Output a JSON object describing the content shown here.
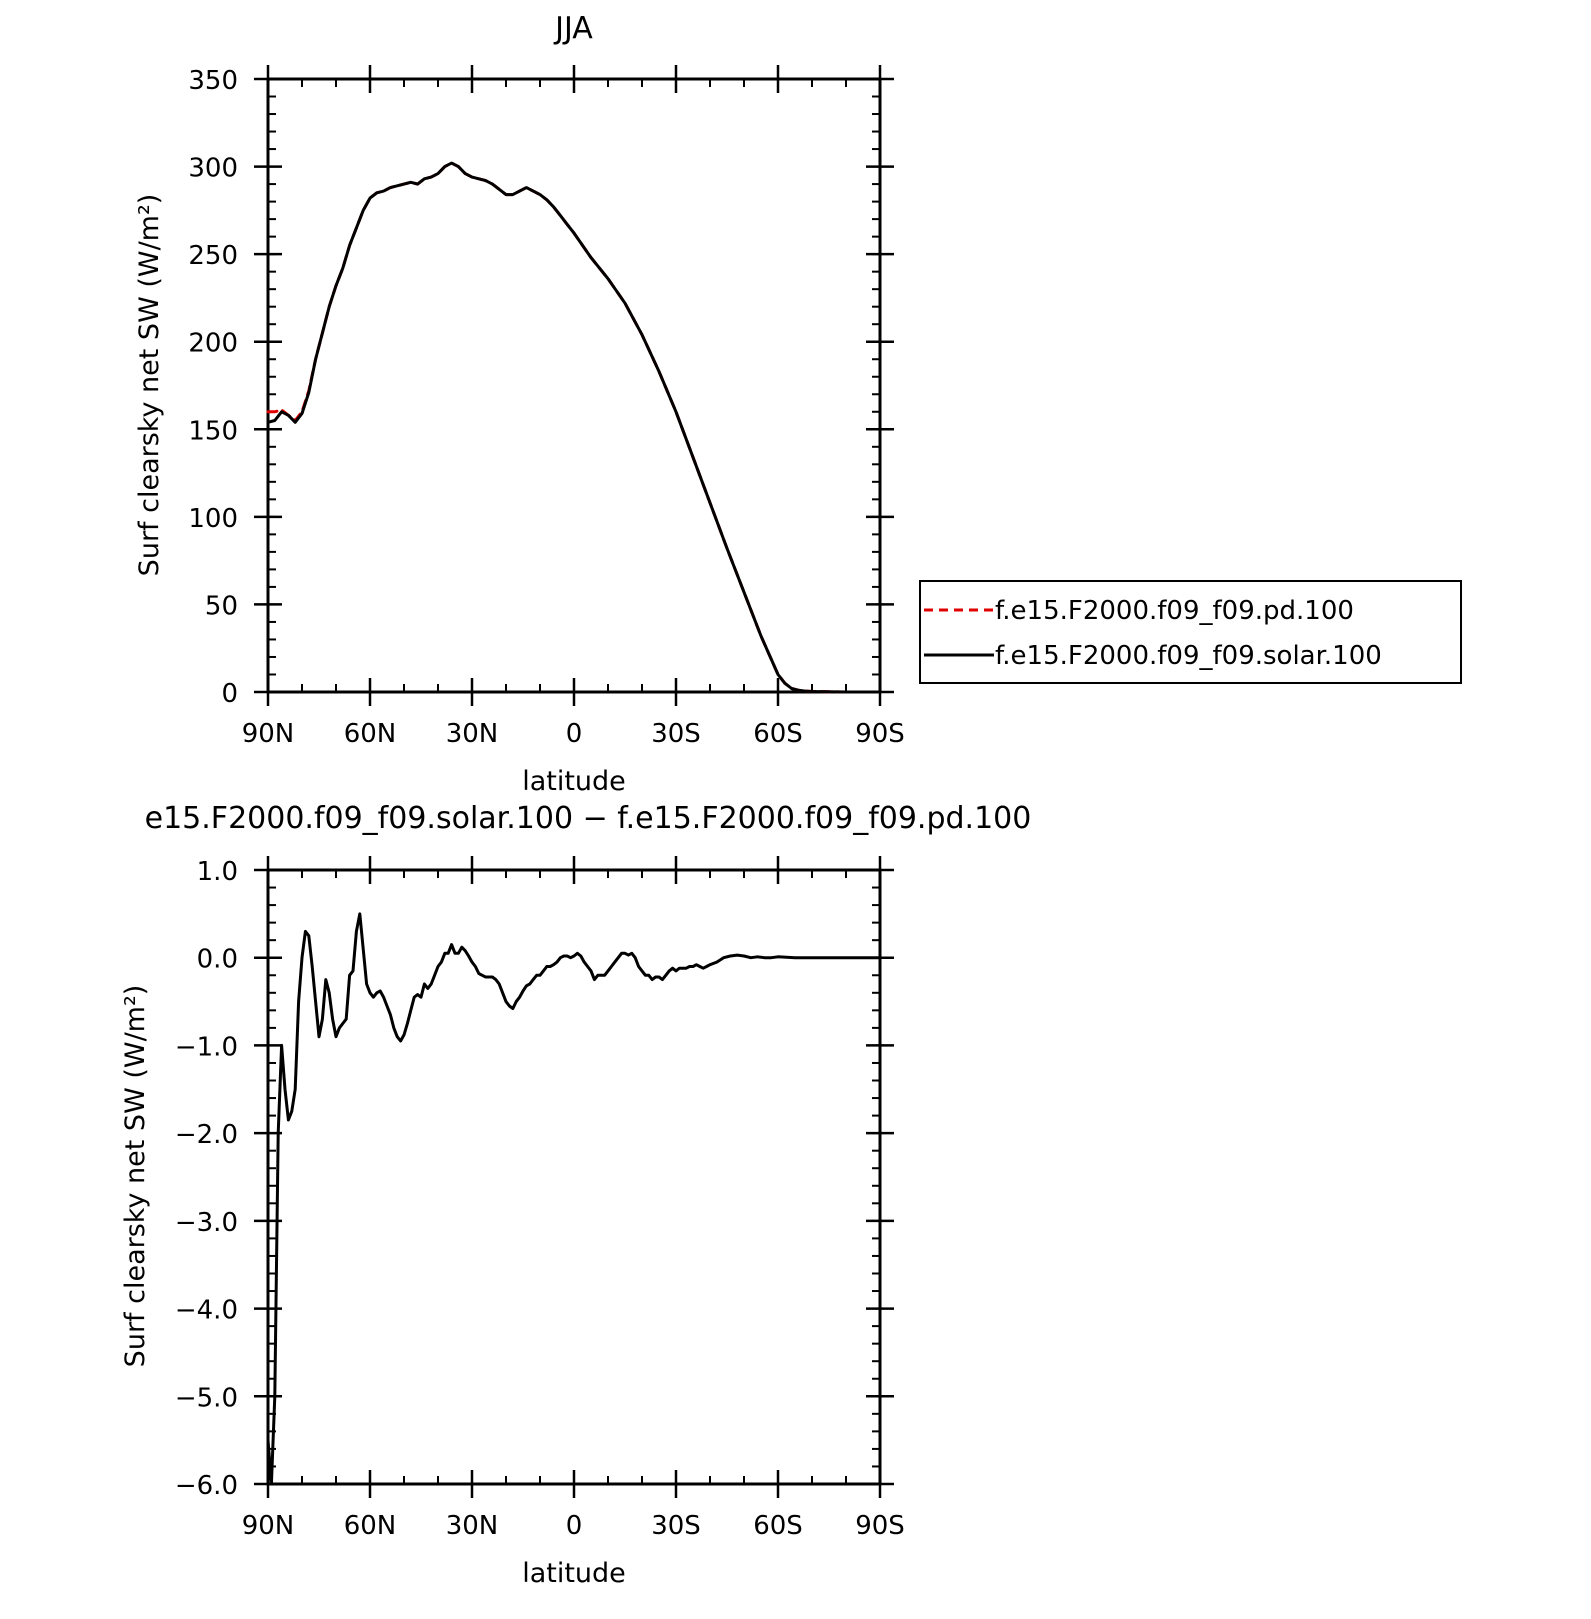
{
  "chart_data": [
    {
      "type": "line",
      "title": "JJA",
      "xlabel": "latitude",
      "ylabel": "Surf clearsky net SW (W/m²)",
      "xlim": [
        90,
        -90
      ],
      "ylim": [
        0,
        350
      ],
      "x_ticks": [
        90,
        60,
        30,
        0,
        -30,
        -60,
        -90
      ],
      "x_tick_labels": [
        "90N",
        "60N",
        "30N",
        "0",
        "30S",
        "60S",
        "90S"
      ],
      "y_ticks": [
        0,
        50,
        100,
        150,
        200,
        250,
        300,
        350
      ],
      "y_tick_labels": [
        "0",
        "50",
        "100",
        "150",
        "200",
        "250",
        "300",
        "350"
      ],
      "legend_position": "right",
      "series": [
        {
          "name": "f.e15.F2000.f09_f09.pd.100",
          "color": "#e00000",
          "dash": "dashed",
          "x": [
            90,
            88,
            86,
            84,
            82,
            80,
            78,
            76,
            74,
            72,
            70,
            68,
            66,
            64,
            62,
            60,
            58,
            56,
            54,
            52,
            50,
            48,
            46,
            44,
            42,
            40,
            38,
            36,
            34,
            32,
            30,
            28,
            26,
            24,
            22,
            20,
            18,
            16,
            14,
            12,
            10,
            8,
            6,
            4,
            2,
            0,
            -5,
            -10,
            -15,
            -20,
            -25,
            -30,
            -35,
            -40,
            -45,
            -50,
            -55,
            -60,
            -62,
            -64,
            -66,
            -68,
            -70,
            -75,
            -80,
            -85,
            -90
          ],
          "y": [
            160,
            160,
            161,
            158,
            155,
            160,
            172,
            190,
            205,
            220,
            232,
            242,
            255,
            265,
            275,
            282,
            285,
            286,
            288,
            289,
            290,
            291,
            290,
            293,
            294,
            296,
            300,
            302,
            300,
            296,
            294,
            293,
            292,
            290,
            287,
            284,
            284,
            286,
            288,
            286,
            284,
            281,
            277,
            272,
            267,
            262,
            248,
            236,
            222,
            204,
            183,
            160,
            134,
            108,
            82,
            57,
            32,
            10,
            5,
            2,
            1,
            0.5,
            0.3,
            0.1,
            0,
            0,
            0
          ]
        },
        {
          "name": "f.e15.F2000.f09_f09.solar.100",
          "color": "#000000",
          "dash": "solid",
          "x": [
            90,
            88,
            86,
            84,
            82,
            80,
            78,
            76,
            74,
            72,
            70,
            68,
            66,
            64,
            62,
            60,
            58,
            56,
            54,
            52,
            50,
            48,
            46,
            44,
            42,
            40,
            38,
            36,
            34,
            32,
            30,
            28,
            26,
            24,
            22,
            20,
            18,
            16,
            14,
            12,
            10,
            8,
            6,
            4,
            2,
            0,
            -5,
            -10,
            -15,
            -20,
            -25,
            -30,
            -35,
            -40,
            -45,
            -50,
            -55,
            -60,
            -62,
            -64,
            -66,
            -68,
            -70,
            -75,
            -80,
            -85,
            -90
          ],
          "y": [
            154,
            155,
            160,
            158,
            154,
            159,
            171,
            190,
            205,
            220,
            232,
            242,
            255,
            265,
            275,
            282,
            285,
            286,
            288,
            289,
            290,
            291,
            290,
            293,
            294,
            296,
            300,
            302,
            300,
            296,
            294,
            293,
            292,
            290,
            287,
            284,
            284,
            286,
            288,
            286,
            284,
            281,
            277,
            272,
            267,
            262,
            248,
            236,
            222,
            204,
            183,
            160,
            134,
            108,
            82,
            57,
            32,
            10,
            5,
            2,
            1,
            0.5,
            0.3,
            0.1,
            0,
            0,
            0
          ]
        }
      ]
    },
    {
      "type": "line",
      "title": "e15.F2000.f09_f09.solar.100 − f.e15.F2000.f09_f09.pd.100",
      "xlabel": "latitude",
      "ylabel": "Surf clearsky net SW (W/m²)",
      "xlim": [
        90,
        -90
      ],
      "ylim": [
        -6,
        1
      ],
      "x_ticks": [
        90,
        60,
        30,
        0,
        -30,
        -60,
        -90
      ],
      "x_tick_labels": [
        "90N",
        "60N",
        "30N",
        "0",
        "30S",
        "60S",
        "90S"
      ],
      "y_ticks": [
        1,
        0,
        -1,
        -2,
        -3,
        -4,
        -5,
        -6
      ],
      "y_tick_labels": [
        "1.0",
        "0.0",
        "−1.0",
        "−2.0",
        "−3.0",
        "−4.0",
        "−5.0",
        "−6.0"
      ],
      "series": [
        {
          "color": "#000000",
          "dash": "solid",
          "x": [
            90,
            89,
            88,
            87,
            86,
            85,
            84,
            83,
            82,
            81,
            80,
            79,
            78,
            77,
            76,
            75,
            74,
            73,
            72,
            71,
            70,
            69,
            68,
            67,
            66,
            65,
            64,
            63,
            62,
            61,
            60,
            59,
            58,
            57,
            56,
            55,
            54,
            53,
            52,
            51,
            50,
            49,
            48,
            47,
            46,
            45,
            44,
            43,
            42,
            41,
            40,
            39,
            38,
            37,
            36,
            35,
            34,
            33,
            32,
            31,
            30,
            29,
            28,
            27,
            26,
            25,
            24,
            23,
            22,
            21,
            20,
            19,
            18,
            17,
            16,
            15,
            14,
            13,
            12,
            11,
            10,
            9,
            8,
            7,
            6,
            5,
            4,
            3,
            2,
            1,
            0,
            -1,
            -2,
            -3,
            -4,
            -5,
            -6,
            -7,
            -8,
            -9,
            -10,
            -11,
            -12,
            -13,
            -14,
            -15,
            -16,
            -17,
            -18,
            -19,
            -20,
            -21,
            -22,
            -23,
            -24,
            -25,
            -26,
            -27,
            -28,
            -29,
            -30,
            -31,
            -32,
            -33,
            -34,
            -35,
            -36,
            -37,
            -38,
            -39,
            -40,
            -42,
            -44,
            -46,
            -48,
            -50,
            -52,
            -54,
            -56,
            -58,
            -60,
            -65,
            -70,
            -75,
            -80,
            -85,
            -90
          ],
          "y": [
            -5.5,
            -6.0,
            -5.0,
            -2.0,
            -1.0,
            -1.5,
            -1.85,
            -1.75,
            -1.5,
            -0.5,
            0.0,
            0.3,
            0.25,
            -0.1,
            -0.5,
            -0.9,
            -0.7,
            -0.25,
            -0.4,
            -0.7,
            -0.9,
            -0.8,
            -0.75,
            -0.7,
            -0.2,
            -0.15,
            0.3,
            0.5,
            0.1,
            -0.3,
            -0.4,
            -0.45,
            -0.4,
            -0.38,
            -0.45,
            -0.55,
            -0.65,
            -0.8,
            -0.9,
            -0.95,
            -0.88,
            -0.75,
            -0.6,
            -0.45,
            -0.42,
            -0.45,
            -0.3,
            -0.35,
            -0.3,
            -0.2,
            -0.1,
            -0.05,
            0.05,
            0.05,
            0.15,
            0.05,
            0.05,
            0.12,
            0.08,
            0.02,
            -0.05,
            -0.1,
            -0.18,
            -0.2,
            -0.22,
            -0.22,
            -0.22,
            -0.25,
            -0.3,
            -0.4,
            -0.5,
            -0.55,
            -0.58,
            -0.5,
            -0.45,
            -0.38,
            -0.32,
            -0.3,
            -0.25,
            -0.2,
            -0.2,
            -0.15,
            -0.1,
            -0.1,
            -0.08,
            -0.05,
            0.0,
            0.02,
            0.02,
            0.0,
            0.02,
            0.05,
            0.02,
            -0.05,
            -0.1,
            -0.15,
            -0.25,
            -0.2,
            -0.2,
            -0.2,
            -0.15,
            -0.1,
            -0.05,
            0.0,
            0.05,
            0.05,
            0.03,
            0.05,
            0.0,
            -0.1,
            -0.15,
            -0.2,
            -0.2,
            -0.25,
            -0.22,
            -0.22,
            -0.25,
            -0.2,
            -0.15,
            -0.12,
            -0.15,
            -0.12,
            -0.12,
            -0.12,
            -0.1,
            -0.1,
            -0.08,
            -0.1,
            -0.12,
            -0.1,
            -0.08,
            -0.05,
            0.0,
            0.02,
            0.03,
            0.02,
            0.0,
            0.01,
            0.0,
            0.0,
            0.01,
            0.0,
            0.0,
            0.0,
            0.0,
            0.0,
            0.0
          ]
        }
      ]
    }
  ]
}
